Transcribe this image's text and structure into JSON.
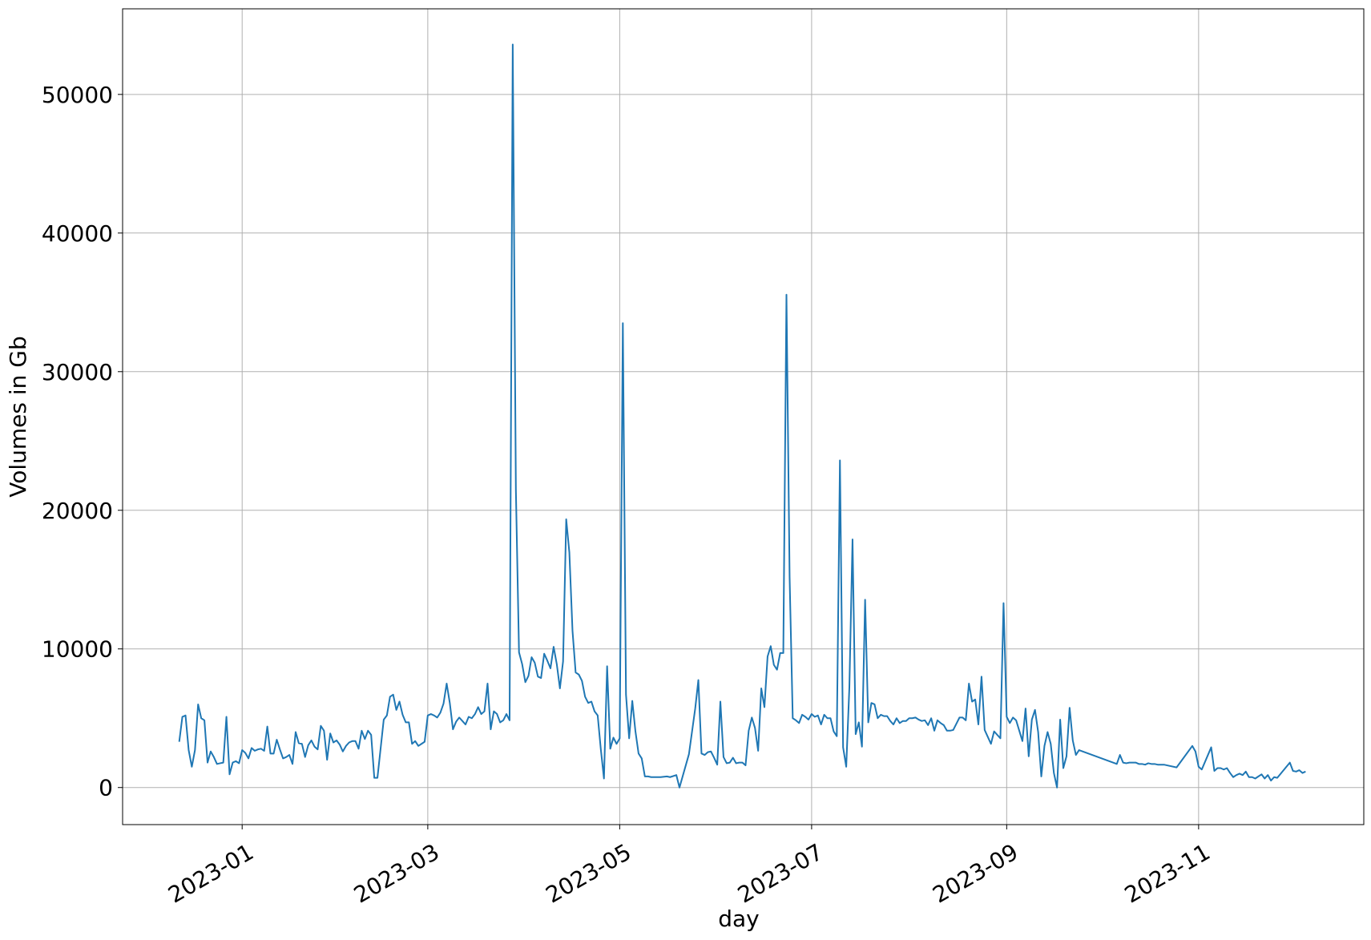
{
  "chart_data": {
    "type": "line",
    "xlabel": "day",
    "ylabel": "Volumes in Gb",
    "xlim": [
      19320,
      19714.5
    ],
    "ylim": [
      -2675,
      56175
    ],
    "xticks": [
      {
        "value": 19358,
        "label": "2023-01"
      },
      {
        "value": 19417,
        "label": "2023-03"
      },
      {
        "value": 19478,
        "label": "2023-05"
      },
      {
        "value": 19539,
        "label": "2023-07"
      },
      {
        "value": 19601,
        "label": "2023-09"
      },
      {
        "value": 19662,
        "label": "2023-11"
      }
    ],
    "yticks": [
      0,
      10000,
      20000,
      30000,
      40000,
      50000
    ],
    "grid": true,
    "series": [
      {
        "color": "#1f77b4",
        "x": [
          19338,
          19339,
          19340,
          19341,
          19342,
          19343,
          19344,
          19345,
          19346,
          19347,
          19348,
          19349,
          19350,
          19351,
          19352,
          19353,
          19354,
          19355,
          19356,
          19357,
          19358,
          19359,
          19360,
          19361,
          19362,
          19363,
          19364,
          19365,
          19366,
          19367,
          19368,
          19369,
          19370,
          19371,
          19372,
          19373,
          19374,
          19375,
          19376,
          19377,
          19378,
          19379,
          19380,
          19381,
          19382,
          19383,
          19384,
          19385,
          19386,
          19387,
          19388,
          19389,
          19390,
          19391,
          19392,
          19393,
          19394,
          19395,
          19396,
          19397,
          19398,
          19399,
          19400,
          19401,
          19403,
          19404,
          19405,
          19406,
          19407,
          19408,
          19409,
          19410,
          19411,
          19412,
          19413,
          19414,
          19415,
          19416,
          19417,
          19418,
          19419,
          19420,
          19421,
          19422,
          19423,
          19424,
          19425,
          19426,
          19427,
          19428,
          19429,
          19430,
          19431,
          19432,
          19433,
          19434,
          19435,
          19436,
          19437,
          19438,
          19439,
          19440,
          19441,
          19442,
          19443,
          19444,
          19445,
          19446,
          19447,
          19448,
          19449,
          19450,
          19451,
          19452,
          19453,
          19454,
          19455,
          19456,
          19457,
          19458,
          19459,
          19460,
          19461,
          19462,
          19463,
          19464,
          19465,
          19466,
          19467,
          19468,
          19469,
          19470,
          19471,
          19472,
          19473,
          19474,
          19475,
          19476,
          19477,
          19478,
          19479,
          19480,
          19481,
          19482,
          19483,
          19484,
          19485,
          19486,
          19487,
          19488,
          19491,
          19493,
          19494,
          19496,
          19497,
          19500,
          19502,
          19503,
          19504,
          19505,
          19506,
          19507,
          19508,
          19509,
          19510,
          19511,
          19512,
          19513,
          19514,
          19515,
          19516,
          19517,
          19518,
          19519,
          19520,
          19521,
          19522,
          19523,
          19524,
          19525,
          19526,
          19527,
          19528,
          19529,
          19530,
          19531,
          19532,
          19533,
          19534,
          19535,
          19536,
          19537,
          19538,
          19539,
          19540,
          19541,
          19542,
          19543,
          19544,
          19545,
          19546,
          19547,
          19548,
          19549,
          19550,
          19551,
          19552,
          19553,
          19554,
          19555,
          19556,
          19557,
          19558,
          19559,
          19560,
          19561,
          19562,
          19563,
          19564,
          19565,
          19566,
          19567,
          19568,
          19569,
          19570,
          19571,
          19572,
          19573,
          19574,
          19575,
          19576,
          19577,
          19578,
          19579,
          19580,
          19581,
          19582,
          19583,
          19584,
          19585,
          19586,
          19587,
          19588,
          19589,
          19590,
          19591,
          19592,
          19593,
          19594,
          19595,
          19596,
          19597,
          19598,
          19599,
          19600,
          19601,
          19602,
          19603,
          19604,
          19605,
          19606,
          19607,
          19608,
          19609,
          19610,
          19611,
          19612,
          19613,
          19614,
          19615,
          19616,
          19617,
          19618,
          19619,
          19620,
          19621,
          19622,
          19623,
          19624,
          19636,
          19637,
          19638,
          19639,
          19640,
          19641,
          19642,
          19643,
          19644,
          19645,
          19646,
          19647,
          19648,
          19649,
          19650,
          19651,
          19652,
          19655,
          19660,
          19661,
          19662,
          19663,
          19666,
          19667,
          19668,
          19669,
          19670,
          19671,
          19672,
          19673,
          19674,
          19675,
          19676,
          19677,
          19678,
          19679,
          19680,
          19681,
          19682,
          19683,
          19684,
          19685,
          19686,
          19687,
          19691,
          19692,
          19693,
          19694,
          19695,
          19696
        ],
        "values": [
          3300,
          5100,
          5200,
          2700,
          1500,
          2700,
          6000,
          5000,
          4850,
          1800,
          2600,
          2200,
          1700,
          1750,
          1800,
          5100,
          950,
          1800,
          1900,
          1750,
          2700,
          2500,
          2100,
          2850,
          2650,
          2750,
          2800,
          2650,
          4400,
          2450,
          2450,
          3450,
          2750,
          2100,
          2200,
          2350,
          1700,
          4000,
          3200,
          3150,
          2200,
          3050,
          3400,
          2950,
          2750,
          4450,
          4100,
          2000,
          3900,
          3250,
          3400,
          3100,
          2600,
          3000,
          3250,
          3350,
          3350,
          2800,
          4100,
          3500,
          4100,
          3800,
          700,
          700,
          4900,
          5200,
          6550,
          6700,
          5600,
          6200,
          5250,
          4700,
          4700,
          3150,
          3350,
          3000,
          3150,
          3300,
          5200,
          5300,
          5200,
          5050,
          5400,
          6050,
          7500,
          6100,
          4200,
          4750,
          5050,
          4800,
          4550,
          5100,
          5000,
          5300,
          5800,
          5300,
          5500,
          7500,
          4200,
          5500,
          5300,
          4700,
          4850,
          5300,
          4850,
          53600,
          21500,
          9750,
          8900,
          7600,
          8050,
          9400,
          9000,
          8000,
          7900,
          9650,
          9150,
          8600,
          10150,
          8900,
          7150,
          9100,
          19350,
          16950,
          11300,
          8300,
          8150,
          7700,
          6550,
          6100,
          6200,
          5500,
          5200,
          2750,
          650,
          8750,
          2800,
          3600,
          3150,
          3550,
          33500,
          6700,
          3550,
          6250,
          4050,
          2450,
          2100,
          800,
          800,
          750,
          750,
          800,
          750,
          900,
          0,
          2400,
          5700,
          7750,
          2450,
          2350,
          2550,
          2600,
          2150,
          1650,
          6200,
          2200,
          1750,
          1800,
          2150,
          1750,
          1800,
          1800,
          1600,
          4100,
          5050,
          4300,
          2650,
          7150,
          5800,
          9450,
          10200,
          8850,
          8500,
          9700,
          9700,
          35550,
          15200,
          5000,
          4850,
          4650,
          5250,
          5100,
          4900,
          5300,
          5100,
          5200,
          4550,
          5250,
          5000,
          5000,
          4050,
          3700,
          23600,
          2900,
          1500,
          7250,
          17900,
          3850,
          4700,
          2950,
          13550,
          4700,
          6100,
          6000,
          5000,
          5250,
          5150,
          5150,
          4800,
          4550,
          5000,
          4650,
          4800,
          4800,
          5000,
          5000,
          5050,
          4900,
          4800,
          4850,
          4500,
          5000,
          4100,
          4850,
          4650,
          4500,
          4100,
          4100,
          4150,
          4600,
          5050,
          5050,
          4850,
          7500,
          6200,
          6350,
          4550,
          8000,
          4150,
          3650,
          3150,
          4050,
          3800,
          3550,
          13300,
          5100,
          4650,
          5050,
          4850,
          4100,
          3350,
          5700,
          2250,
          4900,
          5600,
          4000,
          800,
          3000,
          4000,
          3150,
          1050,
          0,
          4900,
          1400,
          2250,
          5750,
          3400,
          2350,
          2700,
          1700,
          2350,
          1800,
          1750,
          1800,
          1800,
          1800,
          1700,
          1700,
          1650,
          1750,
          1700,
          1700,
          1650,
          1650,
          1650,
          1600,
          1450,
          3000,
          2600,
          1500,
          1300,
          2900,
          1200,
          1400,
          1400,
          1300,
          1400,
          1050,
          750,
          900,
          1000,
          900,
          1150,
          750,
          750,
          650,
          800,
          950,
          650,
          900,
          500,
          750,
          700,
          1800,
          1200,
          1150,
          1250,
          1050,
          1150
        ]
      }
    ]
  }
}
